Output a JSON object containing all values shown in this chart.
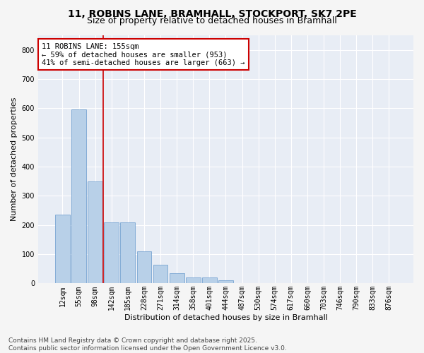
{
  "title_line1": "11, ROBINS LANE, BRAMHALL, STOCKPORT, SK7 2PE",
  "title_line2": "Size of property relative to detached houses in Bramhall",
  "xlabel": "Distribution of detached houses by size in Bramhall",
  "ylabel": "Number of detached properties",
  "bar_color": "#b8d0e8",
  "bar_edge_color": "#6699cc",
  "bg_color": "#e8edf5",
  "grid_color": "#ffffff",
  "fig_bg_color": "#f5f5f5",
  "categories": [
    "12sqm",
    "55sqm",
    "98sqm",
    "142sqm",
    "185sqm",
    "228sqm",
    "271sqm",
    "314sqm",
    "358sqm",
    "401sqm",
    "444sqm",
    "487sqm",
    "530sqm",
    "574sqm",
    "617sqm",
    "660sqm",
    "703sqm",
    "746sqm",
    "790sqm",
    "833sqm",
    "876sqm"
  ],
  "values": [
    235,
    595,
    350,
    210,
    210,
    110,
    65,
    35,
    20,
    20,
    10,
    0,
    0,
    0,
    0,
    0,
    0,
    0,
    0,
    0,
    0
  ],
  "ylim": [
    0,
    850
  ],
  "yticks": [
    0,
    100,
    200,
    300,
    400,
    500,
    600,
    700,
    800
  ],
  "marker_after_index": 2,
  "marker_line_color": "#cc0000",
  "annotation_text": "11 ROBINS LANE: 155sqm\n← 59% of detached houses are smaller (953)\n41% of semi-detached houses are larger (663) →",
  "annotation_box_color": "#ffffff",
  "annotation_box_edge": "#cc0000",
  "footnote": "Contains HM Land Registry data © Crown copyright and database right 2025.\nContains public sector information licensed under the Open Government Licence v3.0.",
  "title_fontsize": 10,
  "subtitle_fontsize": 9,
  "axis_label_fontsize": 8,
  "tick_fontsize": 7,
  "annotation_fontsize": 7.5,
  "footnote_fontsize": 6.5
}
